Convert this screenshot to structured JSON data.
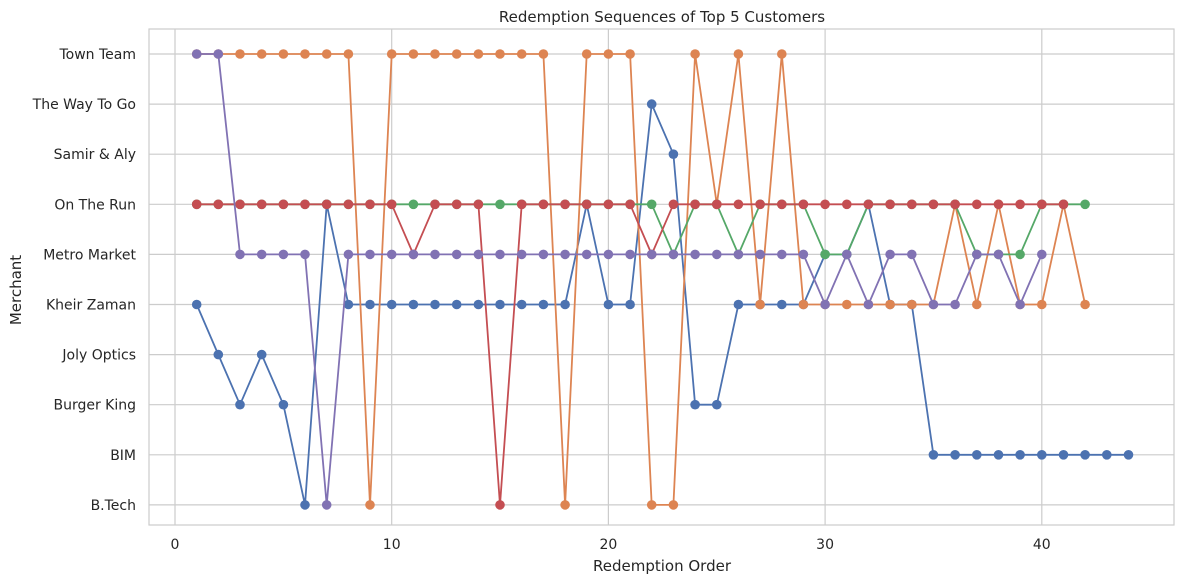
{
  "chart_data": {
    "type": "line",
    "title": "Redemption Sequences of Top 5 Customers",
    "xlabel": "Redemption Order",
    "ylabel": "Merchant",
    "xlim": [
      0,
      46
    ],
    "xticks": [
      0,
      10,
      20,
      30,
      40
    ],
    "categories": [
      "B.Tech",
      "BIM",
      "Burger King",
      "Joly Optics",
      "Kheir Zaman",
      "Metro Market",
      "On The Run",
      "Samir & Aly",
      "The Way To Go",
      "Town Team"
    ],
    "grid": true,
    "legend": "none",
    "series": [
      {
        "color": "#4c72b0",
        "x": [
          1,
          2,
          3,
          4,
          5,
          6,
          7,
          8,
          9,
          10,
          11,
          12,
          13,
          14,
          15,
          16,
          17,
          18,
          19,
          20,
          21,
          22,
          23,
          24,
          25,
          26,
          27,
          28,
          29,
          30,
          31,
          32,
          33,
          34,
          35,
          36,
          37,
          38,
          39,
          40,
          41,
          42,
          43,
          44
        ],
        "y": [
          "Kheir Zaman",
          "Joly Optics",
          "Burger King",
          "Joly Optics",
          "Burger King",
          "B.Tech",
          "On The Run",
          "Kheir Zaman",
          "Kheir Zaman",
          "Kheir Zaman",
          "Kheir Zaman",
          "Kheir Zaman",
          "Kheir Zaman",
          "Kheir Zaman",
          "Kheir Zaman",
          "Kheir Zaman",
          "Kheir Zaman",
          "Kheir Zaman",
          "On The Run",
          "Kheir Zaman",
          "Kheir Zaman",
          "The Way To Go",
          "Samir & Aly",
          "Burger King",
          "Burger King",
          "Kheir Zaman",
          "Kheir Zaman",
          "Kheir Zaman",
          "Kheir Zaman",
          "Metro Market",
          "Metro Market",
          "On The Run",
          "Kheir Zaman",
          "Kheir Zaman",
          "BIM",
          "BIM",
          "BIM",
          "BIM",
          "BIM",
          "BIM",
          "BIM",
          "BIM",
          "BIM",
          "BIM"
        ]
      },
      {
        "color": "#dd8452",
        "x": [
          1,
          2,
          3,
          4,
          5,
          6,
          7,
          8,
          9,
          10,
          11,
          12,
          13,
          14,
          15,
          16,
          17,
          18,
          19,
          20,
          21,
          22,
          23,
          24,
          25,
          26,
          27,
          28,
          29,
          30,
          31,
          32,
          33,
          34,
          35,
          36,
          37,
          38,
          39,
          40,
          41,
          42
        ],
        "y": [
          "Town Team",
          "Town Team",
          "Town Team",
          "Town Team",
          "Town Team",
          "Town Team",
          "Town Team",
          "Town Team",
          "B.Tech",
          "Town Team",
          "Town Team",
          "Town Team",
          "Town Team",
          "Town Team",
          "Town Team",
          "Town Team",
          "Town Team",
          "B.Tech",
          "Town Team",
          "Town Team",
          "Town Team",
          "B.Tech",
          "B.Tech",
          "Town Team",
          "On The Run",
          "Town Team",
          "Kheir Zaman",
          "Town Team",
          "Kheir Zaman",
          "Kheir Zaman",
          "Kheir Zaman",
          "Kheir Zaman",
          "Kheir Zaman",
          "Kheir Zaman",
          "Kheir Zaman",
          "On The Run",
          "Kheir Zaman",
          "On The Run",
          "Kheir Zaman",
          "Kheir Zaman",
          "On The Run",
          "Kheir Zaman"
        ]
      },
      {
        "color": "#55a868",
        "x": [
          1,
          2,
          3,
          4,
          5,
          6,
          7,
          8,
          9,
          10,
          11,
          12,
          13,
          14,
          15,
          16,
          17,
          18,
          19,
          20,
          21,
          22,
          23,
          24,
          25,
          26,
          27,
          28,
          29,
          30,
          31,
          32,
          33,
          34,
          35,
          36,
          37,
          38,
          39,
          40,
          41,
          42
        ],
        "y": [
          "On The Run",
          "On The Run",
          "On The Run",
          "On The Run",
          "On The Run",
          "On The Run",
          "On The Run",
          "On The Run",
          "On The Run",
          "On The Run",
          "On The Run",
          "On The Run",
          "On The Run",
          "On The Run",
          "On The Run",
          "On The Run",
          "On The Run",
          "On The Run",
          "On The Run",
          "On The Run",
          "On The Run",
          "On The Run",
          "Metro Market",
          "On The Run",
          "On The Run",
          "Metro Market",
          "On The Run",
          "On The Run",
          "On The Run",
          "Metro Market",
          "Metro Market",
          "On The Run",
          "On The Run",
          "On The Run",
          "On The Run",
          "On The Run",
          "Metro Market",
          "Metro Market",
          "Metro Market",
          "On The Run",
          "On The Run",
          "On The Run"
        ]
      },
      {
        "color": "#c44e52",
        "x": [
          1,
          2,
          3,
          4,
          5,
          6,
          7,
          8,
          9,
          10,
          11,
          12,
          13,
          14,
          15,
          16,
          17,
          18,
          19,
          20,
          21,
          22,
          23,
          24,
          25,
          26,
          27,
          28,
          29,
          30,
          31,
          32,
          33,
          34,
          35,
          36,
          37,
          38,
          39,
          40,
          41
        ],
        "y": [
          "On The Run",
          "On The Run",
          "On The Run",
          "On The Run",
          "On The Run",
          "On The Run",
          "On The Run",
          "On The Run",
          "On The Run",
          "On The Run",
          "Metro Market",
          "On The Run",
          "On The Run",
          "On The Run",
          "B.Tech",
          "On The Run",
          "On The Run",
          "On The Run",
          "On The Run",
          "On The Run",
          "On The Run",
          "Metro Market",
          "On The Run",
          "On The Run",
          "On The Run",
          "On The Run",
          "On The Run",
          "On The Run",
          "On The Run",
          "On The Run",
          "On The Run",
          "On The Run",
          "On The Run",
          "On The Run",
          "On The Run",
          "On The Run",
          "On The Run",
          "On The Run",
          "On The Run",
          "On The Run",
          "On The Run"
        ]
      },
      {
        "color": "#8172b3",
        "x": [
          1,
          2,
          3,
          4,
          5,
          6,
          7,
          8,
          9,
          10,
          11,
          12,
          13,
          14,
          15,
          16,
          17,
          18,
          19,
          20,
          21,
          22,
          23,
          24,
          25,
          26,
          27,
          28,
          29,
          30,
          31,
          32,
          33,
          34,
          35,
          36,
          37,
          38,
          39,
          40
        ],
        "y": [
          "Town Team",
          "Town Team",
          "Metro Market",
          "Metro Market",
          "Metro Market",
          "Metro Market",
          "B.Tech",
          "Metro Market",
          "Metro Market",
          "Metro Market",
          "Metro Market",
          "Metro Market",
          "Metro Market",
          "Metro Market",
          "Metro Market",
          "Metro Market",
          "Metro Market",
          "Metro Market",
          "Metro Market",
          "Metro Market",
          "Metro Market",
          "Metro Market",
          "Metro Market",
          "Metro Market",
          "Metro Market",
          "Metro Market",
          "Metro Market",
          "Metro Market",
          "Metro Market",
          "Kheir Zaman",
          "Metro Market",
          "Kheir Zaman",
          "Metro Market",
          "Metro Market",
          "Kheir Zaman",
          "Kheir Zaman",
          "Metro Market",
          "Metro Market",
          "Kheir Zaman",
          "Metro Market"
        ]
      }
    ]
  }
}
